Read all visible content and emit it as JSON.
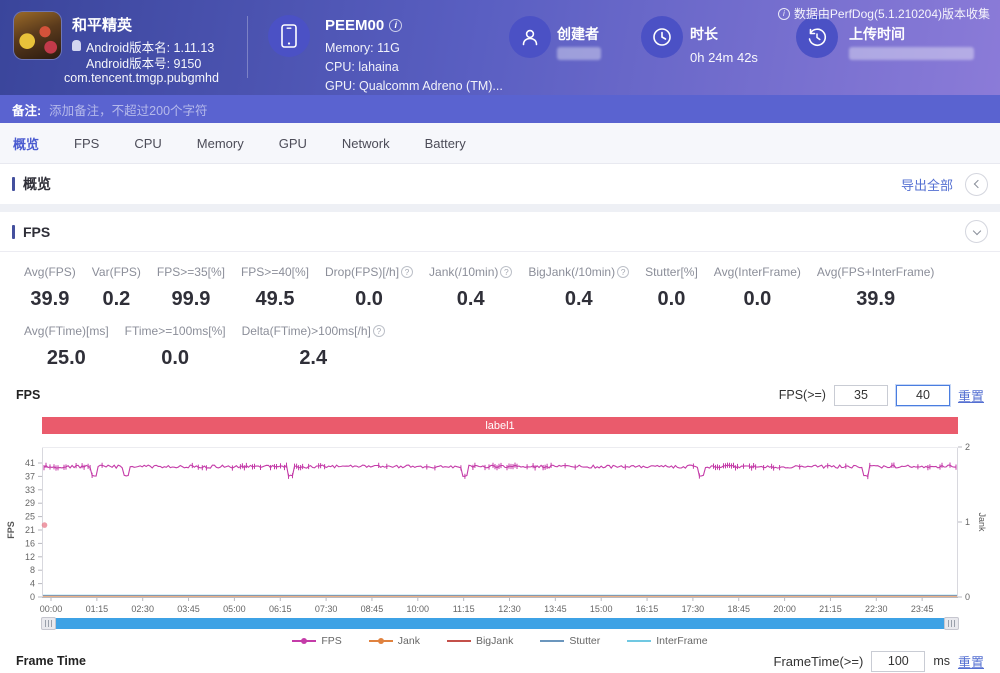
{
  "header": {
    "app": {
      "name": "和平精英",
      "version_name": "Android版本名: 1.11.13",
      "version_code": "Android版本号: 9150",
      "package": "com.tencent.tmgp.pubgmhd"
    },
    "device": {
      "name": "PEEM00",
      "memory": "Memory: 11G",
      "cpu": "CPU: lahaina",
      "gpu": "GPU: Qualcomm Adreno (TM)..."
    },
    "creator_label": "创建者",
    "duration_label": "时长",
    "duration_value": "0h 24m 42s",
    "upload_label": "上传时间",
    "collector_note": "数据由PerfDog(5.1.210204)版本收集"
  },
  "note_bar": {
    "label": "备注:",
    "placeholder": "添加备注，不超过200个字符"
  },
  "tabs": [
    "概览",
    "FPS",
    "CPU",
    "Memory",
    "GPU",
    "Network",
    "Battery"
  ],
  "active_tab": "概览",
  "overview": {
    "title": "概览",
    "export_label": "导出全部"
  },
  "fps": {
    "title": "FPS",
    "chart_label": "FPS",
    "threshold_label": "FPS(>=)",
    "threshold1": "35",
    "threshold2": "40",
    "reset_label": "重置",
    "stats_row1": [
      {
        "label": "Avg(FPS)",
        "value": "39.9",
        "help": false
      },
      {
        "label": "Var(FPS)",
        "value": "0.2",
        "help": false
      },
      {
        "label": "FPS>=35[%]",
        "value": "99.9",
        "help": false
      },
      {
        "label": "FPS>=40[%]",
        "value": "49.5",
        "help": false
      },
      {
        "label": "Drop(FPS)[/h]",
        "value": "0.0",
        "help": true
      },
      {
        "label": "Jank(/10min)",
        "value": "0.4",
        "help": true
      },
      {
        "label": "BigJank(/10min)",
        "value": "0.4",
        "help": true
      },
      {
        "label": "Stutter[%]",
        "value": "0.0",
        "help": false
      },
      {
        "label": "Avg(InterFrame)",
        "value": "0.0",
        "help": false
      },
      {
        "label": "Avg(FPS+InterFrame)",
        "value": "39.9",
        "help": false
      }
    ],
    "stats_row2": [
      {
        "label": "Avg(FTime)[ms]",
        "value": "25.0",
        "help": false
      },
      {
        "label": "FTime>=100ms[%]",
        "value": "0.0",
        "help": false
      },
      {
        "label": "Delta(FTime)>100ms[/h]",
        "value": "2.4",
        "help": true
      }
    ]
  },
  "frame_time": {
    "title": "Frame Time",
    "threshold_label": "FrameTime(>=)",
    "value": "100",
    "unit": "ms",
    "reset_label": "重置"
  },
  "chart_data": {
    "type": "line",
    "title": "FPS",
    "band_label": "label1",
    "band_color": "#ea5b6c",
    "x_ticks": [
      "00:00",
      "01:15",
      "02:30",
      "03:45",
      "05:00",
      "06:15",
      "07:30",
      "08:45",
      "10:00",
      "11:15",
      "12:30",
      "13:45",
      "15:00",
      "16:15",
      "17:30",
      "18:45",
      "20:00",
      "21:15",
      "22:30",
      "23:45"
    ],
    "y_left": {
      "label": "FPS",
      "ticks": [
        "41",
        "37",
        "33",
        "29",
        "25",
        "21",
        "16",
        "12",
        "8",
        "4",
        "0"
      ],
      "max": 41
    },
    "y_right": {
      "label": "Jank",
      "ticks": [
        "2",
        "1",
        "0"
      ],
      "max": 2
    },
    "series": [
      {
        "name": "FPS",
        "color": "#c43ba8",
        "type": "jitter-line",
        "avg": 39.9,
        "min": 37.2,
        "max": 40.8,
        "dip_fracs": [
          0.055,
          0.09,
          0.27,
          0.46,
          0.72,
          0.9
        ],
        "dip_value": 37.3
      },
      {
        "name": "Jank",
        "color": "#e0823f",
        "type": "flat",
        "value": 0
      },
      {
        "name": "BigJank",
        "color": "#c4504a",
        "type": "flat",
        "value": 0
      },
      {
        "name": "Stutter",
        "color": "#6b96bd",
        "type": "flat",
        "value": 0
      },
      {
        "name": "InterFrame",
        "color": "#70c8e2",
        "type": "flat",
        "value": 0
      }
    ],
    "legend": [
      "FPS",
      "Jank",
      "BigJank",
      "Stutter",
      "InterFrame"
    ],
    "stray_point": {
      "value": 22,
      "color": "#e87a8a"
    },
    "grid": true,
    "legend_position": "bottom"
  }
}
